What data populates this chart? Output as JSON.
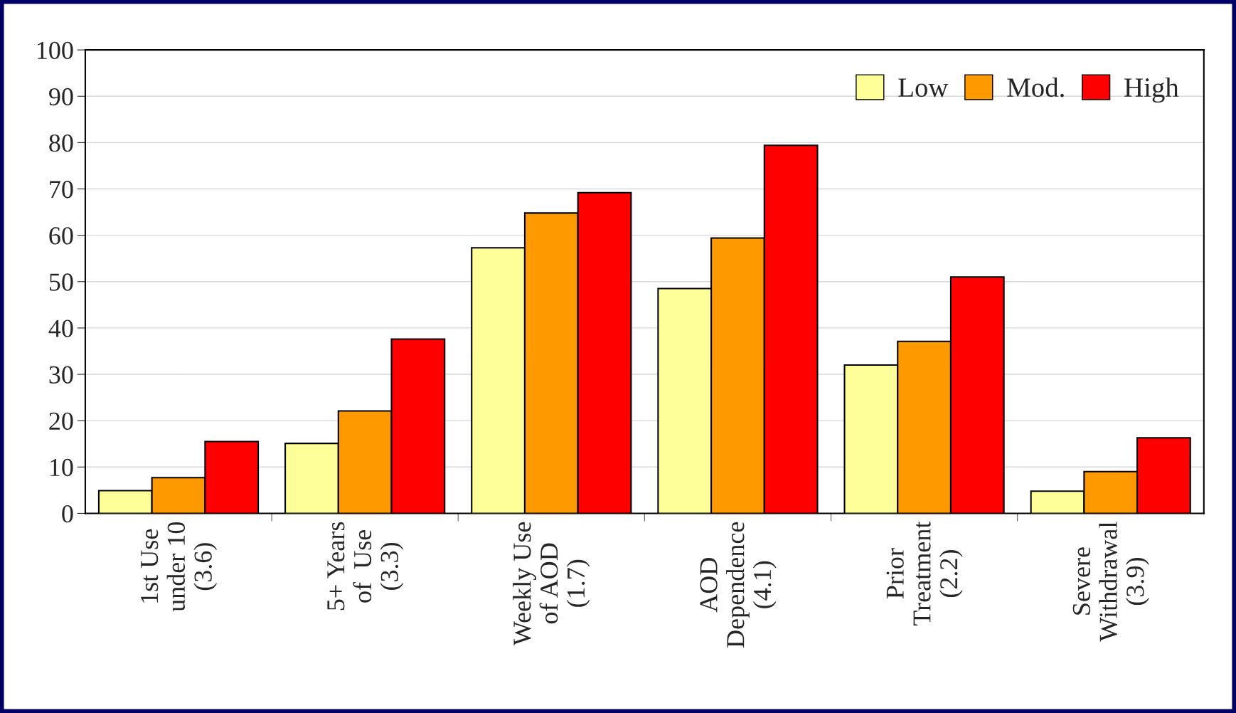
{
  "chart_data": {
    "type": "bar",
    "categories": [
      "1st Use\nunder 10\n(3.6)",
      "5+ Years\nof  Use\n(3.3)",
      "Weekly Use\nof AOD\n(1.7)",
      "AOD\nDependence\n(4.1)",
      "Prior\nTreatment\n(2.2)",
      "Severe\nWithdrawal\n(3.9)"
    ],
    "series": [
      {
        "name": "Low",
        "color": "#ffff99",
        "values": [
          4.9,
          15.1,
          57.3,
          48.5,
          32.0,
          4.8
        ]
      },
      {
        "name": "Mod.",
        "color": "#ff9900",
        "values": [
          7.7,
          22.1,
          64.8,
          59.4,
          37.1,
          9.0
        ]
      },
      {
        "name": "High",
        "color": "#ff0000",
        "values": [
          15.5,
          37.6,
          69.2,
          79.4,
          51.0,
          16.3
        ]
      }
    ],
    "ylim": [
      0,
      100
    ],
    "yticks": [
      0,
      10,
      20,
      30,
      40,
      50,
      60,
      70,
      80,
      90,
      100
    ],
    "grid": "y",
    "legend": "top right"
  }
}
